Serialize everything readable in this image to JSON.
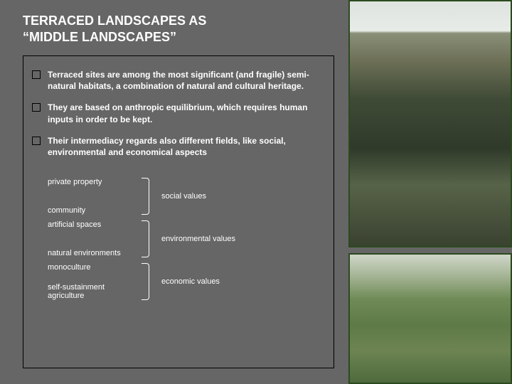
{
  "title": {
    "line1": "TERRACED LANDSCAPES AS",
    "line2": "“MIDDLE LANDSCAPES”"
  },
  "bullets": [
    "Terraced sites are among the most significant (and fragile) semi-natural habitats, a combination of natural and cultural heritage.",
    "They are based on anthropic equilibrium, which requires human inputs in order to be kept.",
    "Their intermediacy regards also different fields, like social, environmental and economical aspects"
  ],
  "pairs": [
    {
      "left_top": "private property",
      "left_bot": "community",
      "value": "social values"
    },
    {
      "left_top": "artificial spaces",
      "left_bot": "natural environments",
      "value": "environmental values"
    },
    {
      "left_top": "monoculture",
      "left_bot": "self-sustainment agriculture",
      "value": "economic values"
    }
  ],
  "style": {
    "page_bg": "#666666",
    "text_color": "#ffffff",
    "box_border": "#000000",
    "img_border": "#2b4a1e",
    "title_fontsize": 18,
    "bullet_fontsize": 12,
    "pair_fontsize": 11
  }
}
